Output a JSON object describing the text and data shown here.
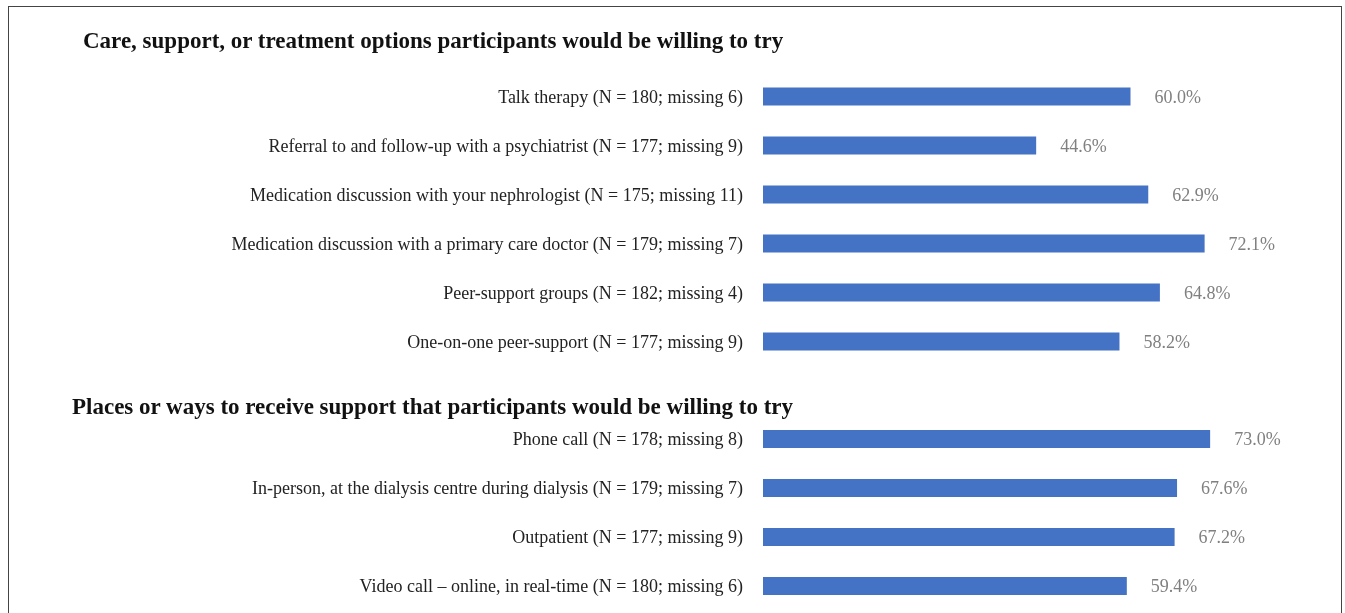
{
  "chart_data": [
    {
      "type": "bar",
      "orientation": "horizontal",
      "title": "Care, support, or treatment options participants would be willing to try",
      "categories": [
        "Talk therapy (N = 180; missing 6)",
        "Referral to and follow-up with a psychiatrist (N = 177; missing 9)",
        "Medication discussion with your nephrologist (N = 175; missing 11)",
        "Medication discussion with a primary care doctor (N = 179; missing 7)",
        "Peer-support groups (N = 182; missing 4)",
        "One-on-one peer-support (N = 177; missing 9)"
      ],
      "values": [
        60.0,
        44.6,
        62.9,
        72.1,
        64.8,
        58.2
      ],
      "value_labels": [
        "60.0%",
        "44.6%",
        "62.9%",
        "72.1%",
        "64.8%",
        "58.2%"
      ],
      "color": "#4472c4",
      "tick_labels": "y"
    },
    {
      "type": "bar",
      "orientation": "horizontal",
      "title": "Places or ways to receive support that participants would be willing to try",
      "categories": [
        "Phone call (N = 178; missing 8)",
        "In-person, at the dialysis centre during dialysis (N = 179; missing 7)",
        "Outpatient (N = 177; missing 9)",
        "Video call – online, in real-time (N = 180; missing 6)"
      ],
      "values": [
        73.0,
        67.6,
        67.2,
        59.4
      ],
      "value_labels": [
        "73.0%",
        "67.6%",
        "67.2%",
        "59.4%"
      ],
      "color": "#4472c4",
      "tick_labels": "y"
    }
  ]
}
